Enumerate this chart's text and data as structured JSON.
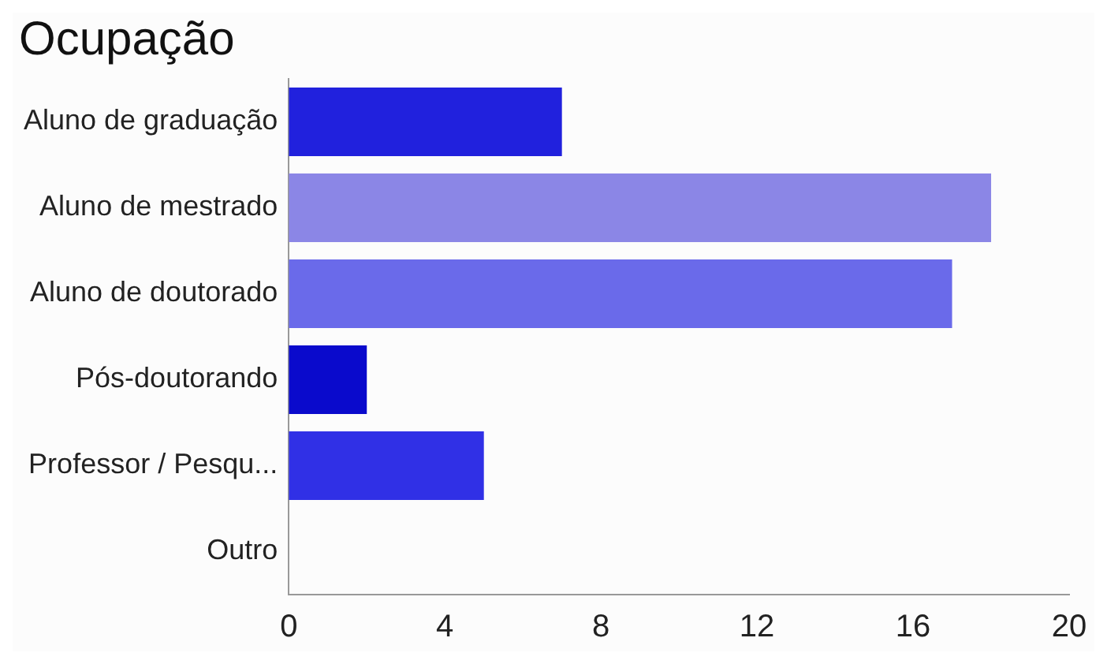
{
  "chart_data": {
    "type": "bar",
    "orientation": "horizontal",
    "title": "Ocupação",
    "categories": [
      "Aluno de graduação",
      "Aluno de mestrado",
      "Aluno de doutorado",
      "Pós-doutorando",
      "Professor / Pesqu...",
      "Outro"
    ],
    "values": [
      7,
      18,
      17,
      2,
      5,
      0
    ],
    "colors": [
      "#2121dd",
      "#8b86e6",
      "#6a6aea",
      "#0a0acc",
      "#3030e6",
      "#3030e6"
    ],
    "xlim": [
      0,
      20
    ],
    "xticks": [
      0,
      4,
      8,
      12,
      16,
      20
    ],
    "grid": false,
    "legend": false
  }
}
